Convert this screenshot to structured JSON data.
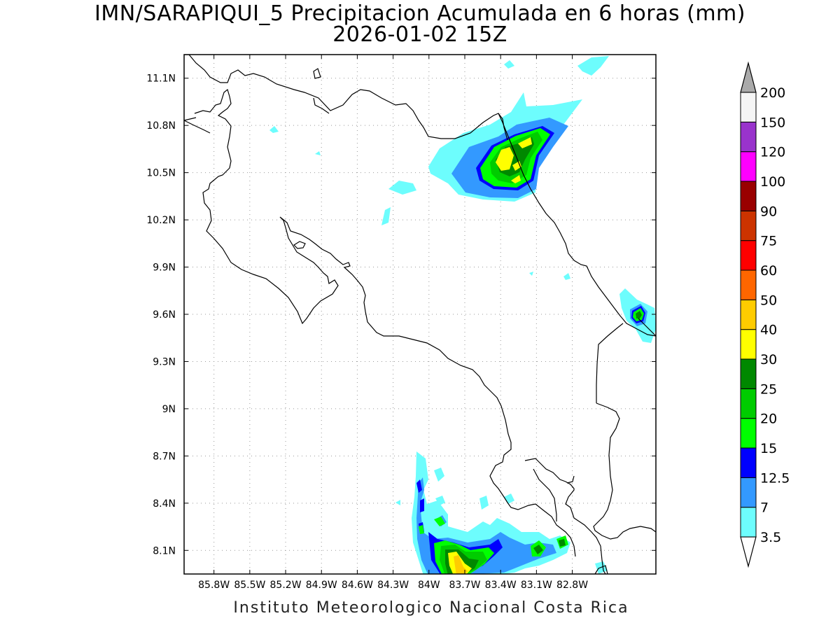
{
  "title": "IMN/SARAPIQUI_5 Precipitacion Acumulada en 6 horas (mm)",
  "subtitle": "2026-01-02 15Z",
  "footer": "Instituto Meteorologico Nacional Costa Rica",
  "map": {
    "lon_range": [
      -86.05,
      -82.1
    ],
    "lat_range": [
      7.95,
      11.25
    ],
    "lon_ticks": [
      "85.8W",
      "85.5W",
      "85.2W",
      "84.9W",
      "84.6W",
      "84.3W",
      "84W",
      "83.7W",
      "83.4W",
      "83.1W",
      "82.8W"
    ],
    "lon_tick_values": [
      -85.8,
      -85.5,
      -85.2,
      -84.9,
      -84.6,
      -84.3,
      -84.0,
      -83.7,
      -83.4,
      -83.1,
      -82.8
    ],
    "lat_ticks": [
      "8.1N",
      "8.4N",
      "8.7N",
      "9N",
      "9.3N",
      "9.6N",
      "9.9N",
      "10.2N",
      "10.5N",
      "10.8N",
      "11.1N"
    ],
    "lat_tick_values": [
      8.1,
      8.4,
      8.7,
      9.0,
      9.3,
      9.6,
      9.9,
      10.2,
      10.5,
      10.8,
      11.1
    ],
    "grid": true
  },
  "colorbar": {
    "labels": [
      "3.5",
      "7",
      "12.5",
      "15",
      "20",
      "25",
      "30",
      "40",
      "50",
      "60",
      "75",
      "90",
      "100",
      "120",
      "150",
      "200"
    ],
    "colors": [
      "#6dfdfd",
      "#3399ff",
      "#0000ff",
      "#00ff00",
      "#00cc00",
      "#008800",
      "#ffff00",
      "#ffcc00",
      "#ff6600",
      "#ff0000",
      "#cc3300",
      "#990000",
      "#ff00ff",
      "#9933cc",
      "#f5f5f5",
      "#aaaaaa"
    ]
  }
}
